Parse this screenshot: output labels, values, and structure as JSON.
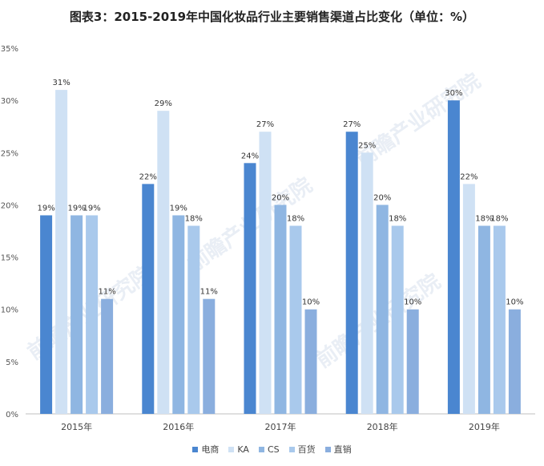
{
  "title": "图表3：2015-2019年中国化妆品行业主要销售渠道占比变化（单位：%）",
  "watermark": "前瞻产业研究院",
  "colors": [
    "#4a86d0",
    "#cfe1f4",
    "#8fb6e2",
    "#a9c9ec",
    "#8aaede"
  ],
  "chart_data": {
    "type": "bar",
    "categories": [
      "2015年",
      "2016年",
      "2017年",
      "2018年",
      "2019年"
    ],
    "series": [
      {
        "name": "电商",
        "values": [
          19,
          22,
          24,
          27,
          30
        ]
      },
      {
        "name": "KA",
        "values": [
          31,
          29,
          27,
          25,
          22
        ]
      },
      {
        "name": "CS",
        "values": [
          19,
          19,
          20,
          20,
          18
        ]
      },
      {
        "name": "百货",
        "values": [
          19,
          18,
          18,
          18,
          18
        ]
      },
      {
        "name": "直销",
        "values": [
          11,
          11,
          10,
          10,
          10
        ]
      }
    ],
    "ylim": [
      0,
      35
    ],
    "yticks": [
      "0%",
      "5%",
      "10%",
      "15%",
      "20%",
      "25%",
      "30%",
      "35%"
    ],
    "value_suffix": "%",
    "legend_position": "bottom",
    "grid": false
  }
}
